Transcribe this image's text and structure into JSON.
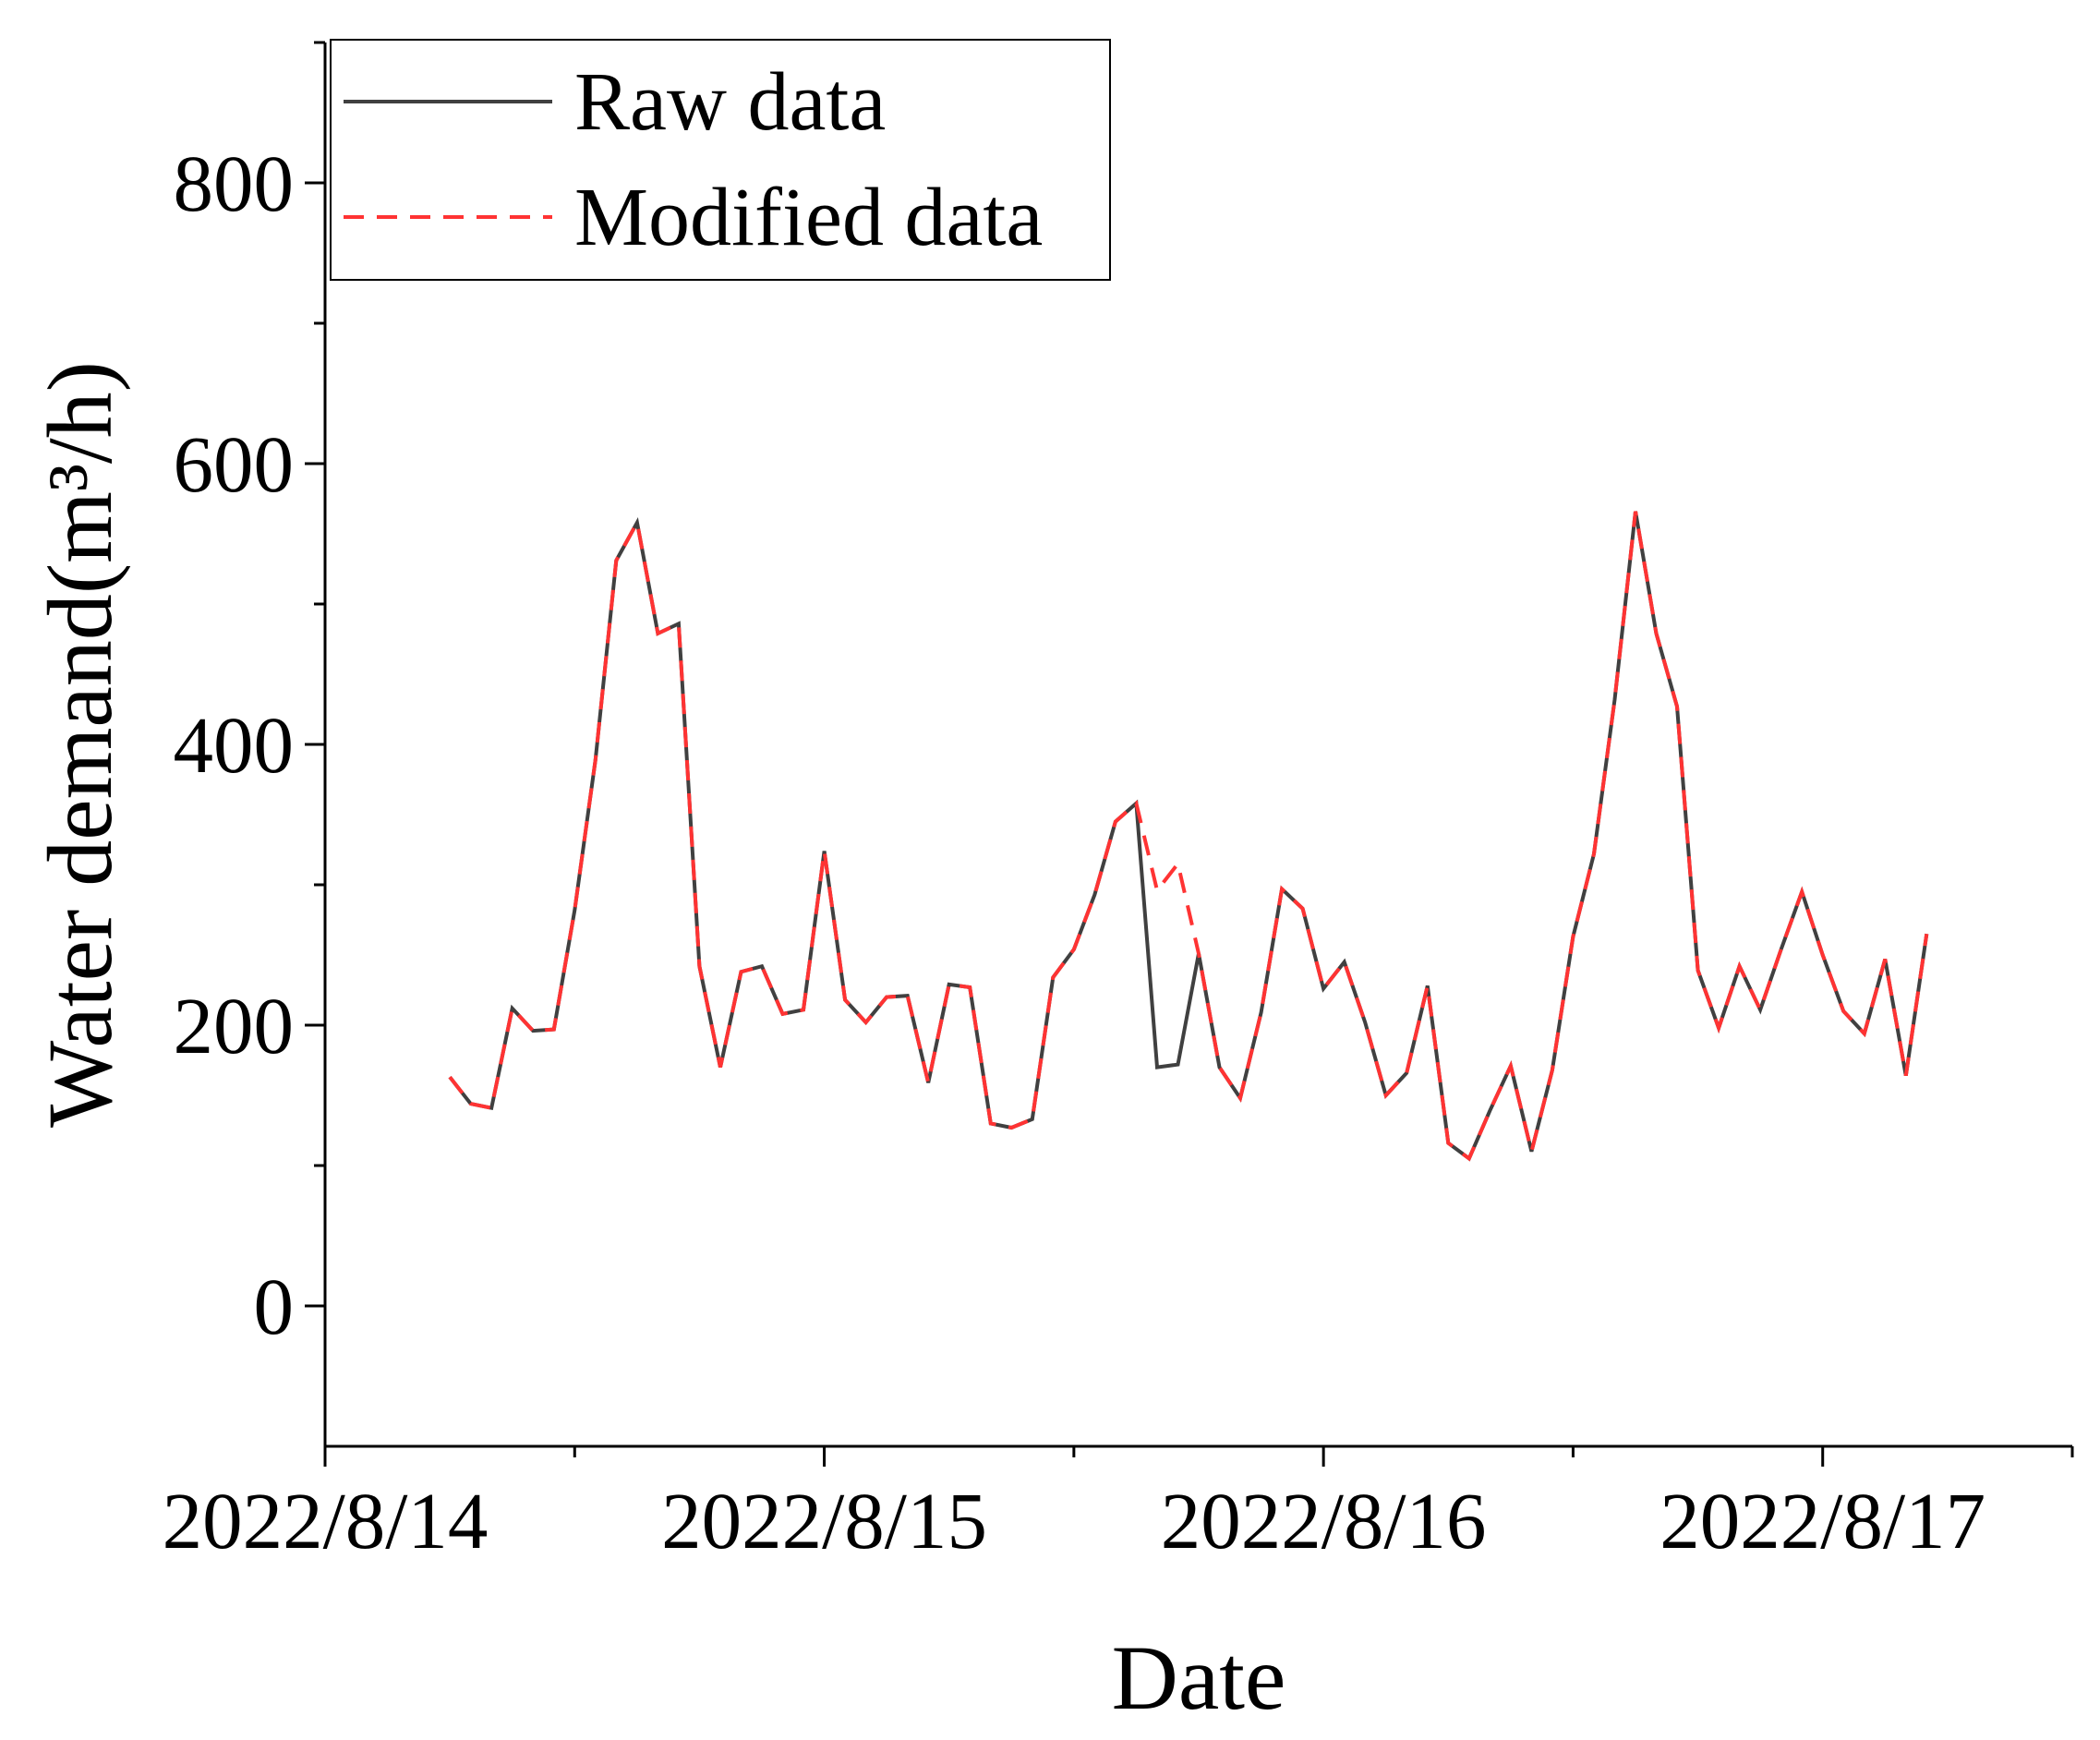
{
  "chart_data": {
    "type": "line",
    "xlabel": "Date",
    "ylabel": "Water demand(m³/h)",
    "x": [
      "2022/8/14 06:00",
      "2022/8/14 07:00",
      "2022/8/14 08:00",
      "2022/8/14 09:00",
      "2022/8/14 10:00",
      "2022/8/14 11:00",
      "2022/8/14 12:00",
      "2022/8/14 13:00",
      "2022/8/14 14:00",
      "2022/8/14 15:00",
      "2022/8/14 16:00",
      "2022/8/14 17:00",
      "2022/8/14 18:00",
      "2022/8/14 19:00",
      "2022/8/14 20:00",
      "2022/8/14 21:00",
      "2022/8/14 22:00",
      "2022/8/14 23:00",
      "2022/8/15 00:00",
      "2022/8/15 01:00",
      "2022/8/15 02:00",
      "2022/8/15 03:00",
      "2022/8/15 04:00",
      "2022/8/15 05:00",
      "2022/8/15 06:00",
      "2022/8/15 07:00",
      "2022/8/15 08:00",
      "2022/8/15 09:00",
      "2022/8/15 10:00",
      "2022/8/15 11:00",
      "2022/8/15 12:00",
      "2022/8/15 13:00",
      "2022/8/15 14:00",
      "2022/8/15 15:00",
      "2022/8/15 16:00",
      "2022/8/15 17:00",
      "2022/8/15 18:00",
      "2022/8/15 19:00",
      "2022/8/15 20:00",
      "2022/8/15 21:00",
      "2022/8/15 22:00",
      "2022/8/15 23:00",
      "2022/8/16 00:00",
      "2022/8/16 01:00",
      "2022/8/16 02:00",
      "2022/8/16 03:00",
      "2022/8/16 04:00",
      "2022/8/16 05:00",
      "2022/8/16 06:00",
      "2022/8/16 07:00",
      "2022/8/16 08:00",
      "2022/8/16 09:00",
      "2022/8/16 10:00",
      "2022/8/16 11:00",
      "2022/8/16 12:00",
      "2022/8/16 13:00",
      "2022/8/16 14:00",
      "2022/8/16 15:00",
      "2022/8/16 16:00",
      "2022/8/16 17:00",
      "2022/8/16 18:00",
      "2022/8/16 19:00",
      "2022/8/16 20:00",
      "2022/8/16 21:00",
      "2022/8/16 22:00",
      "2022/8/16 23:00",
      "2022/8/17 00:00",
      "2022/8/17 01:00",
      "2022/8/17 02:00",
      "2022/8/17 03:00",
      "2022/8/17 04:00",
      "2022/8/17 05:00"
    ],
    "series": [
      {
        "name": "Raw data",
        "color": "#404040",
        "dash": "solid",
        "values": [
          163,
          144,
          141,
          212,
          196,
          197,
          282,
          389,
          531,
          558,
          479,
          486,
          242,
          170,
          238,
          242,
          208,
          211,
          324,
          218,
          202,
          220,
          221,
          159,
          229,
          227,
          130,
          127,
          133,
          234,
          254,
          293,
          345,
          358,
          170,
          172,
          251,
          170,
          148,
          209,
          297,
          283,
          226,
          245,
          202,
          150,
          166,
          228,
          116,
          105,
          139,
          171,
          110,
          168,
          263,
          322,
          432,
          566,
          479,
          427,
          239,
          198,
          242,
          211,
          254,
          295,
          250,
          210,
          194,
          247,
          164,
          265
        ]
      },
      {
        "name": "Modified data",
        "color": "#ff3333",
        "dash": "dashed",
        "values": [
          163,
          144,
          141,
          212,
          196,
          197,
          282,
          389,
          531,
          558,
          479,
          486,
          242,
          170,
          238,
          242,
          208,
          211,
          324,
          218,
          202,
          220,
          221,
          159,
          229,
          227,
          130,
          127,
          133,
          234,
          254,
          293,
          345,
          358,
          296,
          315,
          251,
          170,
          148,
          209,
          297,
          283,
          226,
          245,
          202,
          150,
          166,
          228,
          116,
          105,
          139,
          171,
          110,
          168,
          263,
          322,
          432,
          566,
          479,
          427,
          239,
          198,
          242,
          211,
          254,
          295,
          250,
          210,
          194,
          247,
          164,
          265
        ]
      }
    ],
    "xlim": [
      "2022/8/14",
      "2022/8/17 12:00"
    ],
    "xticks": [
      "2022/8/14",
      "2022/8/15",
      "2022/8/16",
      "2022/8/17"
    ],
    "xminor_ticks": [
      "2022/8/14 12:00",
      "2022/8/15 12:00",
      "2022/8/16 12:00",
      "2022/8/17 12:00"
    ],
    "ylim": [
      -100,
      900
    ],
    "yticks": [
      0,
      200,
      400,
      600,
      800
    ],
    "yminor_ticks": [
      100,
      300,
      500,
      700,
      900
    ],
    "legend": "upper left"
  }
}
